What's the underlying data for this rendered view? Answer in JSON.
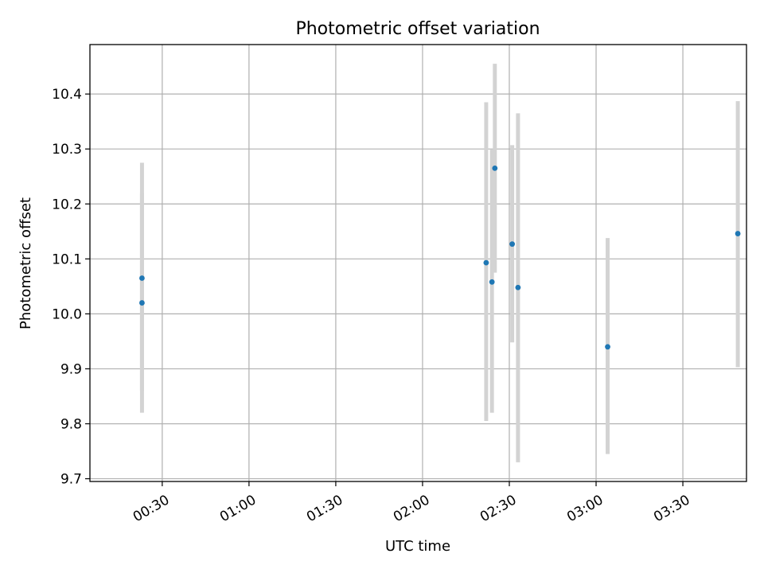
{
  "chart_data": {
    "type": "scatter",
    "title": "Photometric offset variation",
    "xlabel": "UTC time",
    "ylabel": "Photometric offset",
    "x_unit": "time-of-day",
    "xlim": [
      "00:05",
      "03:52"
    ],
    "ylim": [
      9.695,
      10.49
    ],
    "xticks": [
      "00:30",
      "01:00",
      "01:30",
      "02:00",
      "02:30",
      "03:00",
      "03:30"
    ],
    "yticks": [
      9.7,
      9.8,
      9.9,
      10.0,
      10.1,
      10.2,
      10.3,
      10.4
    ],
    "ytick_labels": [
      "9.7",
      "9.8",
      "9.9",
      "10.0",
      "10.1",
      "10.2",
      "10.3",
      "10.4"
    ],
    "grid": true,
    "colors": {
      "point": "#1f77b4",
      "errorbar": "#d3d3d3"
    },
    "points": [
      {
        "x": "00:23",
        "y": 10.02,
        "ylow": 9.82,
        "yhigh": 10.22
      },
      {
        "x": "00:23",
        "y": 10.065,
        "ylow": 9.86,
        "yhigh": 10.275
      },
      {
        "x": "02:22",
        "y": 10.093,
        "ylow": 9.805,
        "yhigh": 10.385
      },
      {
        "x": "02:24",
        "y": 10.058,
        "ylow": 9.82,
        "yhigh": 10.3
      },
      {
        "x": "02:25",
        "y": 10.265,
        "ylow": 10.075,
        "yhigh": 10.455
      },
      {
        "x": "02:31",
        "y": 10.127,
        "ylow": 9.948,
        "yhigh": 10.307
      },
      {
        "x": "02:33",
        "y": 10.048,
        "ylow": 9.73,
        "yhigh": 10.365
      },
      {
        "x": "03:04",
        "y": 9.94,
        "ylow": 9.745,
        "yhigh": 10.138
      },
      {
        "x": "03:49",
        "y": 10.146,
        "ylow": 9.903,
        "yhigh": 10.387
      }
    ]
  }
}
